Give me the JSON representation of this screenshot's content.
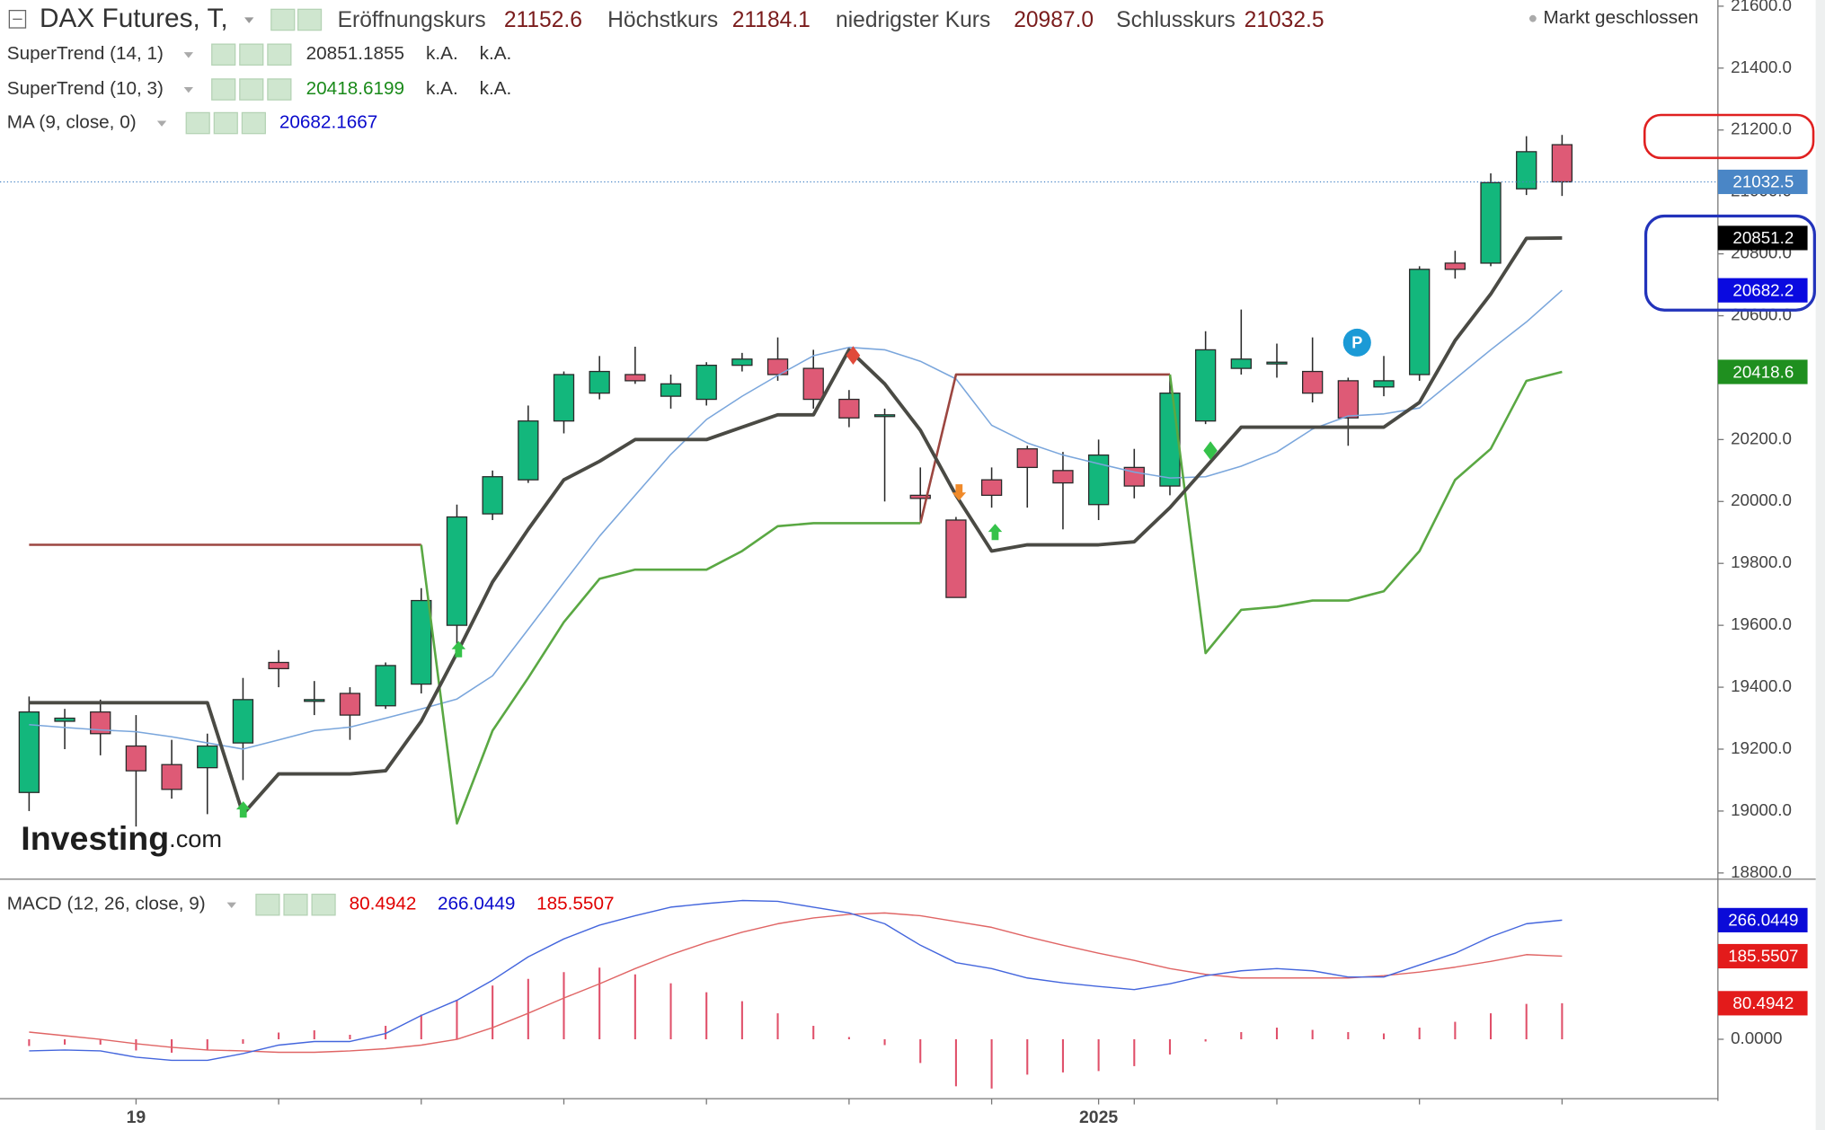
{
  "header": {
    "symbol": "DAX Futures, T,",
    "open_label": "Eröffnungskurs",
    "open": "21152.6",
    "high_label": "Höchstkurs",
    "high": "21184.1",
    "low_label": "niedrigster Kurs",
    "low": "20987.0",
    "close_label": "Schlusskurs",
    "close": "21032.5",
    "status": "Markt geschlossen"
  },
  "logo": {
    "name": "Investing",
    "suffix": ".com"
  },
  "pivot_marker": "P",
  "chart_data": [
    {
      "type": "candlestick",
      "categories": [
        null,
        null,
        null,
        "19",
        null,
        null,
        null,
        null,
        null,
        null,
        null,
        null,
        null,
        null,
        null,
        null,
        null,
        null,
        null,
        null,
        null,
        null,
        null,
        null,
        null,
        null,
        null,
        null,
        null,
        null,
        "2025",
        null,
        null,
        null,
        null,
        null,
        null,
        null,
        null,
        null,
        null,
        null,
        null,
        null
      ],
      "open": [
        19060,
        19290,
        19320,
        19210,
        19150,
        19140,
        19220,
        19480,
        19360,
        19380,
        19340,
        19410,
        19600,
        19960,
        20070,
        20260,
        20350,
        20410,
        20340,
        20330,
        20440,
        20460,
        20430,
        20330,
        20280,
        20020,
        19940,
        20070,
        20170,
        20100,
        19990,
        20110,
        20050,
        20260,
        20430,
        20450,
        20420,
        20390,
        20370,
        20410,
        20770,
        20770,
        21010,
        21152.6
      ],
      "high": [
        19370,
        19330,
        19360,
        19310,
        19230,
        19250,
        19430,
        19520,
        19420,
        19400,
        19480,
        19720,
        19990,
        20100,
        20310,
        20420,
        20470,
        20500,
        20410,
        20450,
        20480,
        20530,
        20490,
        20360,
        20300,
        20110,
        19950,
        20110,
        20180,
        20160,
        20200,
        20170,
        20410,
        20550,
        20620,
        20510,
        20530,
        20400,
        20470,
        20760,
        20810,
        21060,
        21180,
        21184.1
      ],
      "low": [
        19000,
        19200,
        19180,
        18950,
        19040,
        18990,
        19100,
        19400,
        19310,
        19230,
        19330,
        19380,
        19540,
        19940,
        20060,
        20220,
        20330,
        20380,
        20300,
        20310,
        20420,
        20390,
        20300,
        20240,
        20000,
        19930,
        19690,
        19980,
        19980,
        19910,
        19940,
        20010,
        20020,
        20250,
        20410,
        20400,
        20320,
        20180,
        20340,
        20390,
        20720,
        20760,
        20990,
        20987.0
      ],
      "close": [
        19320,
        19300,
        19250,
        19130,
        19070,
        19210,
        19360,
        19460,
        19360,
        19310,
        19470,
        19680,
        19950,
        20080,
        20260,
        20410,
        20420,
        20390,
        20380,
        20440,
        20460,
        20410,
        20330,
        20270,
        20280,
        20010,
        19690,
        20020,
        20110,
        20060,
        20150,
        20050,
        20350,
        20490,
        20460,
        20450,
        20350,
        20270,
        20390,
        20750,
        20750,
        21030,
        21130,
        21032.5
      ],
      "up_color": "#13b77c",
      "down_color": "#de5a76",
      "ylim": [
        18780,
        21620
      ],
      "yticks": [
        {
          "value": 18800,
          "label": "18800.0"
        },
        {
          "value": 19000,
          "label": "19000.0"
        },
        {
          "value": 19200,
          "label": "19200.0"
        },
        {
          "value": 19400,
          "label": "19400.0"
        },
        {
          "value": 19600,
          "label": "19600.0"
        },
        {
          "value": 19800,
          "label": "19800.0"
        },
        {
          "value": 20000,
          "label": "20000.0"
        },
        {
          "value": 20200,
          "label": "20200.0"
        },
        {
          "value": 20400,
          "label": "20400.0"
        },
        {
          "value": 20600,
          "label": "20600.0"
        },
        {
          "value": 20800,
          "label": "20800.0"
        },
        {
          "value": 21000,
          "label": "21000.0"
        },
        {
          "value": 21200,
          "label": "21200.0"
        },
        {
          "value": 21400,
          "label": "21400.0"
        },
        {
          "value": 21600,
          "label": "21600.0"
        }
      ],
      "overlays": [
        {
          "name": "MA (9, close, 0)",
          "color": "#7aa6dc",
          "line_width": 1.2,
          "legend_values": [
            "20682.1667"
          ],
          "values": [
            19279,
            19270,
            19262,
            19256,
            19240,
            19220,
            19200,
            19230,
            19260,
            19271,
            19300,
            19330,
            19362,
            19437,
            19587,
            19738,
            19888,
            20020,
            20152,
            20265,
            20340,
            20407,
            20471,
            20498,
            20490,
            20453,
            20396,
            20246,
            20189,
            20150,
            20122,
            20095,
            20076,
            20080,
            20114,
            20160,
            20234,
            20276,
            20283,
            20302,
            20396,
            20490,
            20580,
            20682.1667
          ]
        },
        {
          "name": "SuperTrend (10, 3)",
          "color": "#5aa843",
          "line_width": 2,
          "alt_color": "#9c4640",
          "legend_values": [
            "20418.6199",
            "k.A.",
            "k.A."
          ],
          "values": [
            null,
            null,
            null,
            null,
            null,
            null,
            null,
            null,
            null,
            null,
            null,
            19860,
            18960,
            19260,
            19430,
            19610,
            19750,
            19780,
            19780,
            19780,
            19840,
            19920,
            19930,
            19930,
            19930,
            19930,
            null,
            null,
            null,
            null,
            null,
            null,
            20410,
            19510,
            19650,
            19660,
            19680,
            19680,
            19710,
            19840,
            20070,
            20170,
            20390,
            20418.6199
          ],
          "alt_values": [
            19860,
            19860,
            19860,
            19860,
            19860,
            19860,
            19860,
            19860,
            19860,
            19860,
            19860,
            19860,
            null,
            null,
            null,
            null,
            null,
            null,
            null,
            null,
            null,
            null,
            null,
            null,
            null,
            19930,
            20410,
            20410,
            20410,
            20410,
            20410,
            20410,
            20410,
            null,
            null,
            null,
            null,
            null,
            null,
            null,
            null,
            null,
            null,
            null
          ]
        },
        {
          "name": "SuperTrend (14, 1)",
          "color": "#4a4a44",
          "line_width": 3,
          "legend_values": [
            "20851.1855",
            "k.A.",
            "k.A."
          ],
          "values": [
            19350,
            19350,
            19350,
            19350,
            19350,
            19350,
            18990,
            19120,
            19120,
            19120,
            19130,
            19290,
            19510,
            19740,
            19910,
            20070,
            20130,
            20200,
            20200,
            20200,
            20240,
            20280,
            20280,
            20490,
            20380,
            20230,
            20020,
            19840,
            19860,
            19860,
            19860,
            19870,
            19980,
            20110,
            20240,
            20240,
            20240,
            20240,
            20240,
            20320,
            20520,
            20670,
            20850,
            20851.1855
          ]
        }
      ],
      "badges": [
        {
          "value": 21032.5,
          "label": "21032.5",
          "color": "#4a86c6",
          "dotted_line": true
        },
        {
          "value": 20851.2,
          "label": "20851.2",
          "color": "#000000"
        },
        {
          "value": 20682.2,
          "label": "20682.2",
          "color": "#0a0ae0"
        },
        {
          "value": 20418.6,
          "label": "20418.6",
          "color": "#1f8f1f"
        }
      ]
    },
    {
      "type": "macd",
      "title": "MACD (12, 26, close, 9)",
      "legend_values": [
        "80.4942",
        "266.0449",
        "185.5507"
      ],
      "ylim": [
        -130,
        355
      ],
      "yticks": [
        {
          "value": 0,
          "label": "0.0000"
        }
      ],
      "histogram": {
        "color": "#e0506a",
        "values": [
          -15,
          -12,
          -12,
          -25,
          -30,
          -25,
          -10,
          15,
          20,
          10,
          30,
          55,
          88,
          120,
          135,
          150,
          160,
          145,
          125,
          105,
          85,
          58,
          30,
          5,
          -13,
          -53,
          -105,
          -110,
          -79,
          -74,
          -71,
          -60,
          -34,
          -5,
          16,
          26,
          21,
          16,
          13,
          26,
          39,
          58,
          79,
          80.4942
        ]
      },
      "macd": {
        "color": "#4466dd",
        "values": [
          -26,
          -24,
          -26,
          -40,
          -47,
          -47,
          -32,
          -13,
          -5,
          -5,
          13,
          53,
          87,
          132,
          184,
          224,
          255,
          276,
          295,
          303,
          310,
          308,
          295,
          282,
          258,
          210,
          171,
          158,
          137,
          126,
          118,
          111,
          124,
          142,
          153,
          158,
          153,
          139,
          139,
          166,
          192,
          229,
          258,
          266.0449
        ]
      },
      "signal": {
        "color": "#e06565",
        "values": [
          16,
          8,
          0,
          -10,
          -18,
          -24,
          -26,
          -29,
          -29,
          -26,
          -21,
          -13,
          0,
          26,
          58,
          92,
          124,
          158,
          189,
          216,
          239,
          258,
          271,
          279,
          282,
          276,
          263,
          250,
          229,
          210,
          192,
          176,
          158,
          145,
          137,
          137,
          137,
          137,
          142,
          150,
          161,
          174,
          189,
          185.5507
        ]
      },
      "badges": [
        {
          "value": 266.0449,
          "label": "266.0449",
          "color": "#0b0bd8"
        },
        {
          "value": 185.5507,
          "label": "185.5507",
          "color": "#e31b1b"
        },
        {
          "value": 80.4942,
          "label": "80.4942",
          "color": "#e31b1b"
        }
      ]
    }
  ]
}
